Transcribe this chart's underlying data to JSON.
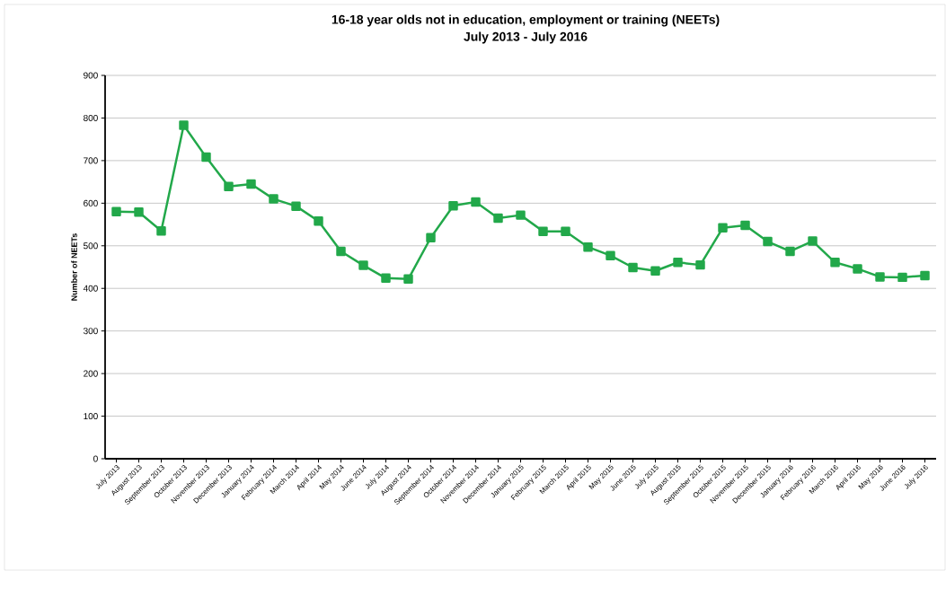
{
  "chart_data": {
    "type": "line",
    "title": "16-18 year olds not in education, employment or training (NEETs)",
    "subtitle": "July 2013 - July 2016",
    "ylabel": "Number of NEETs",
    "categories": [
      "July 2013",
      "August 2013",
      "September 2013",
      "October 2013",
      "November 2013",
      "December 2013",
      "January 2014",
      "February 2014",
      "March 2014",
      "April 2014",
      "May 2014",
      "June 2014",
      "July 2014",
      "August 2014",
      "September 2014",
      "October 2014",
      "November 2014",
      "December 2014",
      "January 2015",
      "February 2015",
      "March 2015",
      "April 2015",
      "May 2015",
      "June 2015",
      "July 2015",
      "August 2015",
      "September 2015",
      "October 2015",
      "November 2015",
      "December 2015",
      "January 2016",
      "February 2016",
      "March 2016",
      "April 2016",
      "May 2016",
      "June 2016",
      "July 2016"
    ],
    "series": [
      {
        "color": "#22a84a",
        "values": [
          580,
          579,
          535,
          783,
          708,
          639,
          645,
          610,
          593,
          558,
          487,
          454,
          424,
          422,
          519,
          594,
          603,
          565,
          572,
          534,
          534,
          497,
          477,
          449,
          441,
          461,
          455,
          542,
          548,
          510,
          487,
          511,
          461,
          446,
          427,
          426,
          430
        ]
      }
    ],
    "ylim": [
      0,
      900
    ],
    "yticks": [
      0,
      100,
      200,
      300,
      400,
      500,
      600,
      700,
      800,
      900
    ],
    "grid": "y",
    "marker": "square",
    "line_style": "solid"
  }
}
